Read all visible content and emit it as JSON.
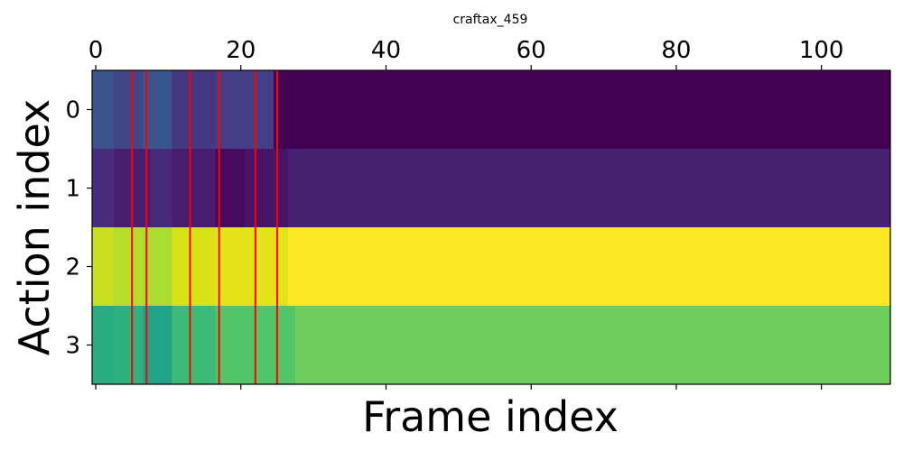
{
  "chart_data": {
    "type": "heatmap",
    "title": "craftax_459",
    "xlabel": "Frame index",
    "ylabel": "Action index",
    "x_ticks": [
      0,
      20,
      40,
      60,
      80,
      100
    ],
    "y_ticks": [
      0,
      1,
      2,
      3
    ],
    "xlim": [
      -0.5,
      109.5
    ],
    "ylim": [
      3.5,
      -0.5
    ],
    "x_axis_position": "top",
    "colormap": "viridis",
    "n_frames": 110,
    "n_actions": 4,
    "rows": [
      {
        "action": 0,
        "segments": [
          {
            "start": 0,
            "end": 3,
            "color": "#3b528b"
          },
          {
            "start": 3,
            "end": 7,
            "color": "#404688"
          },
          {
            "start": 7,
            "end": 11,
            "color": "#39568c"
          },
          {
            "start": 11,
            "end": 17,
            "color": "#453882"
          },
          {
            "start": 17,
            "end": 25,
            "color": "#433e85"
          },
          {
            "start": 25,
            "end": 110,
            "color": "#440154"
          }
        ]
      },
      {
        "action": 1,
        "segments": [
          {
            "start": 0,
            "end": 3,
            "color": "#472d7b"
          },
          {
            "start": 3,
            "end": 8,
            "color": "#481f70"
          },
          {
            "start": 8,
            "end": 11,
            "color": "#472a7a"
          },
          {
            "start": 11,
            "end": 17,
            "color": "#481c6e"
          },
          {
            "start": 17,
            "end": 21,
            "color": "#460b5e"
          },
          {
            "start": 21,
            "end": 27,
            "color": "#481467"
          },
          {
            "start": 27,
            "end": 110,
            "color": "#482173"
          }
        ]
      },
      {
        "action": 2,
        "segments": [
          {
            "start": 0,
            "end": 3,
            "color": "#c8e020"
          },
          {
            "start": 3,
            "end": 7,
            "color": "#b5de2b"
          },
          {
            "start": 7,
            "end": 11,
            "color": "#addc30"
          },
          {
            "start": 11,
            "end": 17,
            "color": "#d8e219"
          },
          {
            "start": 17,
            "end": 27,
            "color": "#e5e419"
          },
          {
            "start": 27,
            "end": 110,
            "color": "#fde725"
          }
        ]
      },
      {
        "action": 3,
        "segments": [
          {
            "start": 0,
            "end": 3,
            "color": "#27ad81"
          },
          {
            "start": 3,
            "end": 7,
            "color": "#2db27d"
          },
          {
            "start": 7,
            "end": 11,
            "color": "#20a486"
          },
          {
            "start": 11,
            "end": 17,
            "color": "#3bbb75"
          },
          {
            "start": 17,
            "end": 28,
            "color": "#52c569"
          },
          {
            "start": 28,
            "end": 110,
            "color": "#6ccd5a"
          }
        ]
      }
    ],
    "vertical_markers": {
      "color": "#ff0000",
      "frames": [
        5,
        7,
        13,
        17,
        22,
        25
      ]
    }
  }
}
